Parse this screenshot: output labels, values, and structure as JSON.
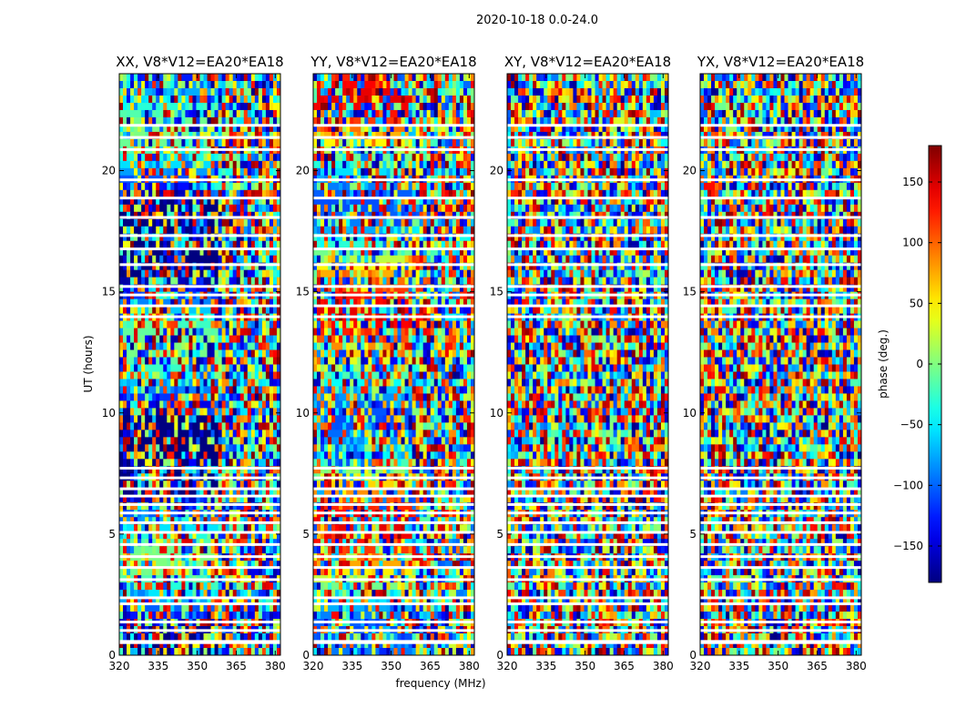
{
  "figure": {
    "suptitle": "2020-10-18 0.0-24.0"
  },
  "colors": {
    "colormap": "jet",
    "axis": "#000000",
    "flagged": "#ffffff"
  },
  "chart_data": {
    "type": "heatmap",
    "panels": [
      {
        "title": "XX, V8*V12=EA20*EA18"
      },
      {
        "title": "YY, V8*V12=EA20*EA18"
      },
      {
        "title": "XY, V8*V12=EA20*EA18"
      },
      {
        "title": "YX, V8*V12=EA20*EA18"
      }
    ],
    "xlabel": "frequency (MHz)",
    "ylabel": "UT (hours)",
    "xlim": [
      320,
      382
    ],
    "ylim": [
      0,
      24
    ],
    "xticks": [
      320,
      335,
      350,
      365,
      380
    ],
    "yticks": [
      0,
      5,
      10,
      15,
      20
    ],
    "colorbar": {
      "label": "phase (deg.)",
      "range": [
        -180,
        180
      ],
      "ticks": [
        -150,
        -100,
        -50,
        0,
        50,
        100,
        150
      ],
      "ticklabels": [
        "−150",
        "−100",
        "−50",
        "0",
        "50",
        "100",
        "150"
      ]
    },
    "flagged_ut_hours": [
      0.5,
      0.55,
      1.0,
      1.35,
      2.1,
      2.35,
      3.1,
      3.6,
      4.05,
      4.55,
      5.05,
      5.45,
      5.85,
      6.2,
      6.55,
      6.85,
      7.3,
      7.7,
      13.95,
      14.4,
      14.85,
      15.2,
      16.1,
      16.75,
      17.3,
      18.05,
      18.85,
      19.6,
      20.85,
      21.35,
      21.85
    ]
  }
}
